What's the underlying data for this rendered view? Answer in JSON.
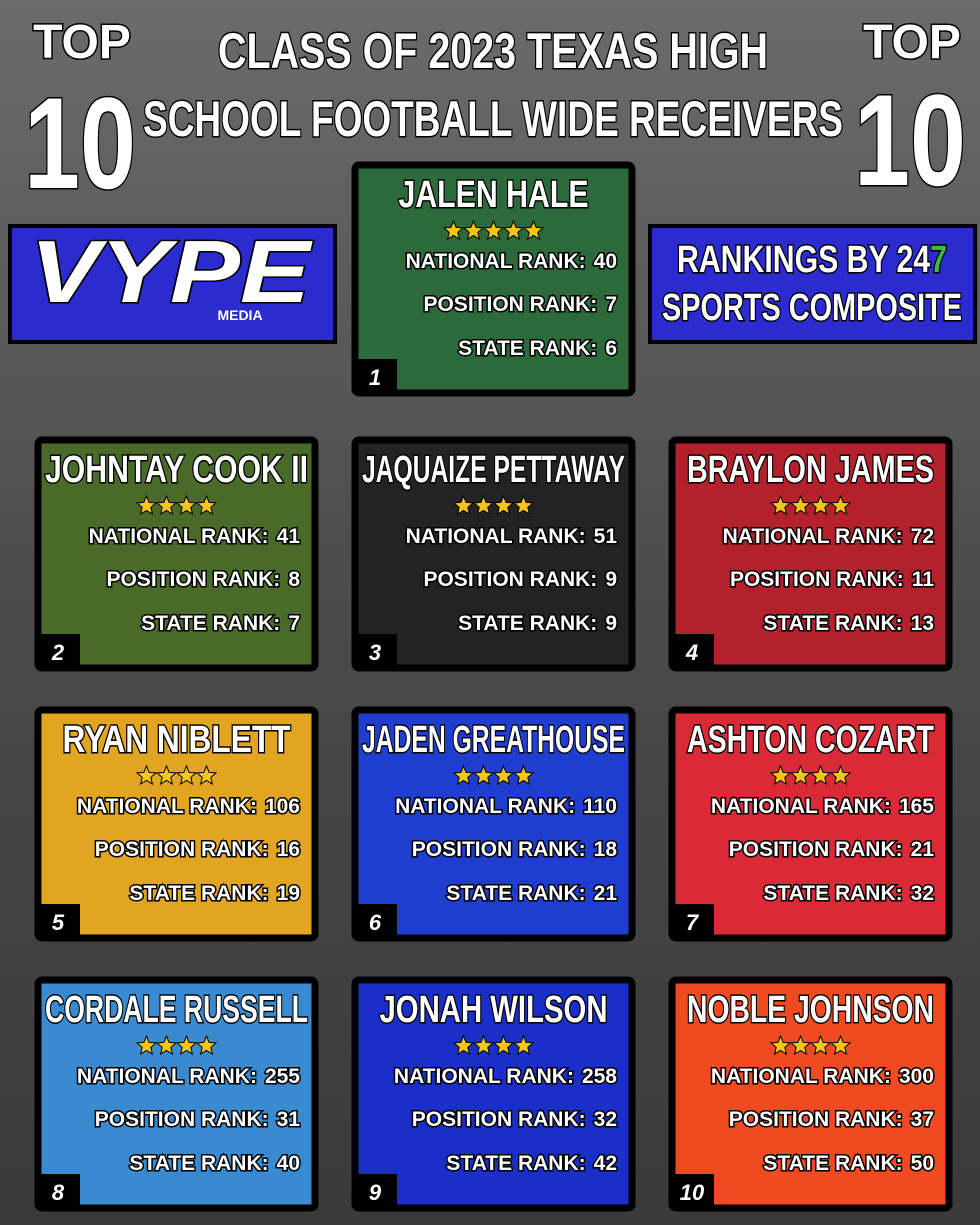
{
  "header": {
    "top_left": {
      "top": "TOP",
      "ten": "10"
    },
    "top_right": {
      "top": "TOP",
      "ten": "10"
    },
    "title_lines": [
      "CLASS OF 2023 TEXAS HIGH",
      "SCHOOL FOOTBALL WIDE RECEIVERS"
    ]
  },
  "logo": {
    "name": "VYPE",
    "sub": "MEDIA"
  },
  "source": {
    "line1": "RANKINGS BY 24",
    "highlight": "7",
    "line2": "SPORTS COMPOSITE"
  },
  "labels": {
    "national": "NATIONAL RANK:",
    "position": "POSITION RANK:",
    "state": "STATE RANK:"
  },
  "players": [
    {
      "rank": "1",
      "name": "JALEN HALE",
      "stars": 5,
      "national": 40,
      "position": 7,
      "state": 6,
      "color": "#2c6a3c"
    },
    {
      "rank": "2",
      "name": "JOHNTAY COOK II",
      "stars": 4,
      "national": 41,
      "position": 8,
      "state": 7,
      "color": "#4a6a2a"
    },
    {
      "rank": "3",
      "name": "JAQUAIZE PETTAWAY",
      "stars": 4,
      "national": 51,
      "position": 9,
      "state": 9,
      "color": "#232323"
    },
    {
      "rank": "4",
      "name": "BRAYLON JAMES",
      "stars": 4,
      "national": 72,
      "position": 11,
      "state": 13,
      "color": "#b3222c"
    },
    {
      "rank": "5",
      "name": "RYAN NIBLETT",
      "stars": 4,
      "national": 106,
      "position": 16,
      "state": 19,
      "color": "#e2a521"
    },
    {
      "rank": "6",
      "name": "JADEN GREATHOUSE",
      "stars": 4,
      "national": 110,
      "position": 18,
      "state": 21,
      "color": "#1f3ed0"
    },
    {
      "rank": "7",
      "name": "ASHTON COZART",
      "stars": 4,
      "national": 165,
      "position": 21,
      "state": 32,
      "color": "#d92a36"
    },
    {
      "rank": "8",
      "name": "CORDALE RUSSELL",
      "stars": 4,
      "national": 255,
      "position": 31,
      "state": 40,
      "color": "#3a8ad0"
    },
    {
      "rank": "9",
      "name": "JONAH WILSON",
      "stars": 4,
      "national": 258,
      "position": 32,
      "state": 42,
      "color": "#1a2fc8"
    },
    {
      "rank": "10",
      "name": "NOBLE JOHNSON",
      "stars": 4,
      "national": 300,
      "position": 37,
      "state": 50,
      "color": "#ef4a22"
    }
  ]
}
